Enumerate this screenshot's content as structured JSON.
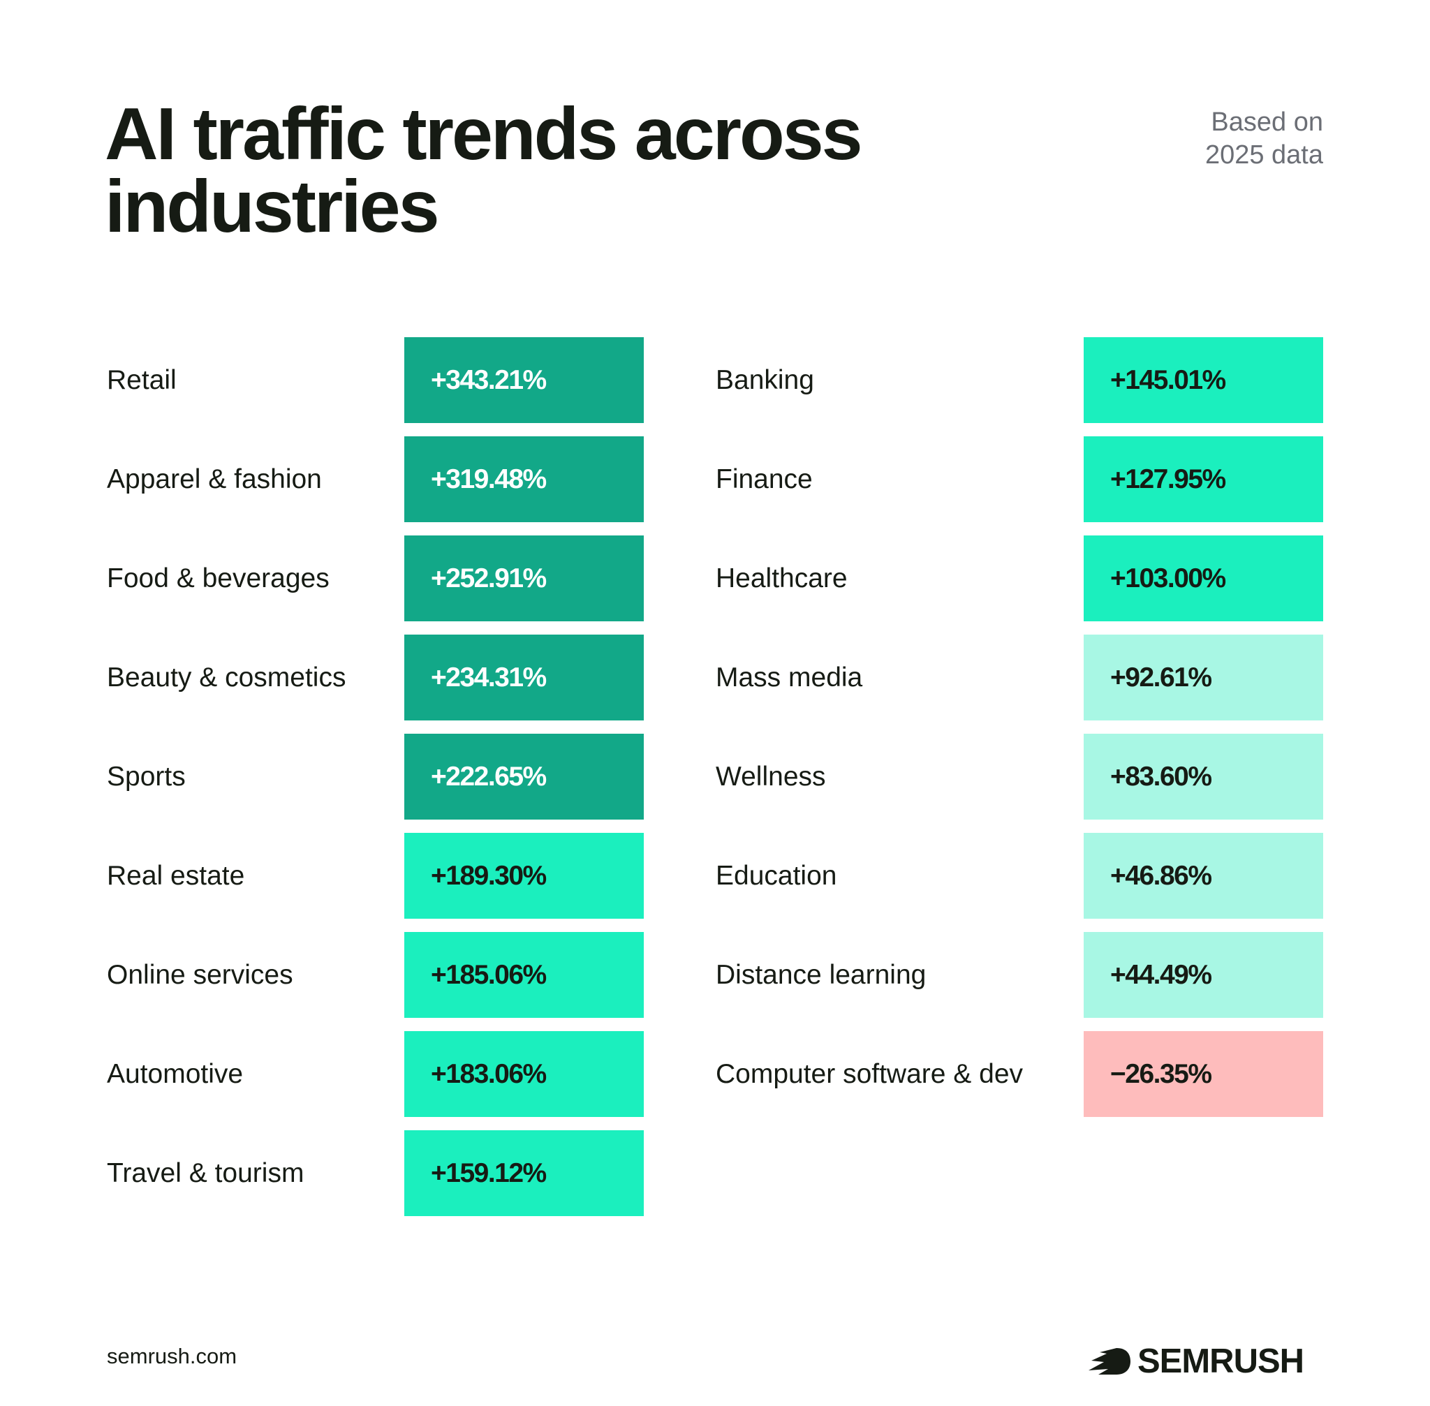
{
  "title": "AI traffic trends across industries",
  "note": [
    "Based on",
    "2025 data"
  ],
  "footer": {
    "url": "semrush.com",
    "logo_text": "SEMRUSH"
  },
  "colors": {
    "strong_growth": "#12A888",
    "growth": "#1BEFBE",
    "moderate_growth": "#A8F7E4",
    "decline": "#FEBCBC",
    "text_dark": "#161B14",
    "text_light": "#FFFFFF"
  },
  "chart_data": {
    "type": "table",
    "title": "AI traffic trends across industries",
    "columns": [
      [
        {
          "industry": "Retail",
          "value": "+343.21%",
          "change": 343.21,
          "tier": "strong_growth"
        },
        {
          "industry": "Apparel & fashion",
          "value": "+319.48%",
          "change": 319.48,
          "tier": "strong_growth"
        },
        {
          "industry": "Food & beverages",
          "value": "+252.91%",
          "change": 252.91,
          "tier": "strong_growth"
        },
        {
          "industry": "Beauty & cosmetics",
          "value": "+234.31%",
          "change": 234.31,
          "tier": "strong_growth"
        },
        {
          "industry": "Sports",
          "value": "+222.65%",
          "change": 222.65,
          "tier": "strong_growth"
        },
        {
          "industry": "Real estate",
          "value": "+189.30%",
          "change": 189.3,
          "tier": "growth"
        },
        {
          "industry": "Online services",
          "value": "+185.06%",
          "change": 185.06,
          "tier": "growth"
        },
        {
          "industry": "Automotive",
          "value": "+183.06%",
          "change": 183.06,
          "tier": "growth"
        },
        {
          "industry": "Travel & tourism",
          "value": "+159.12%",
          "change": 159.12,
          "tier": "growth"
        }
      ],
      [
        {
          "industry": "Banking",
          "value": "+145.01%",
          "change": 145.01,
          "tier": "growth"
        },
        {
          "industry": "Finance",
          "value": "+127.95%",
          "change": 127.95,
          "tier": "growth"
        },
        {
          "industry": "Healthcare",
          "value": "+103.00%",
          "change": 103.0,
          "tier": "growth"
        },
        {
          "industry": "Mass media",
          "value": "+92.61%",
          "change": 92.61,
          "tier": "moderate_growth"
        },
        {
          "industry": "Wellness",
          "value": "+83.60%",
          "change": 83.6,
          "tier": "moderate_growth"
        },
        {
          "industry": "Education",
          "value": "+46.86%",
          "change": 46.86,
          "tier": "moderate_growth"
        },
        {
          "industry": "Distance learning",
          "value": "+44.49%",
          "change": 44.49,
          "tier": "moderate_growth"
        },
        {
          "industry": "Computer software & dev",
          "value": "−26.35%",
          "change": -26.35,
          "tier": "decline"
        }
      ]
    ]
  }
}
